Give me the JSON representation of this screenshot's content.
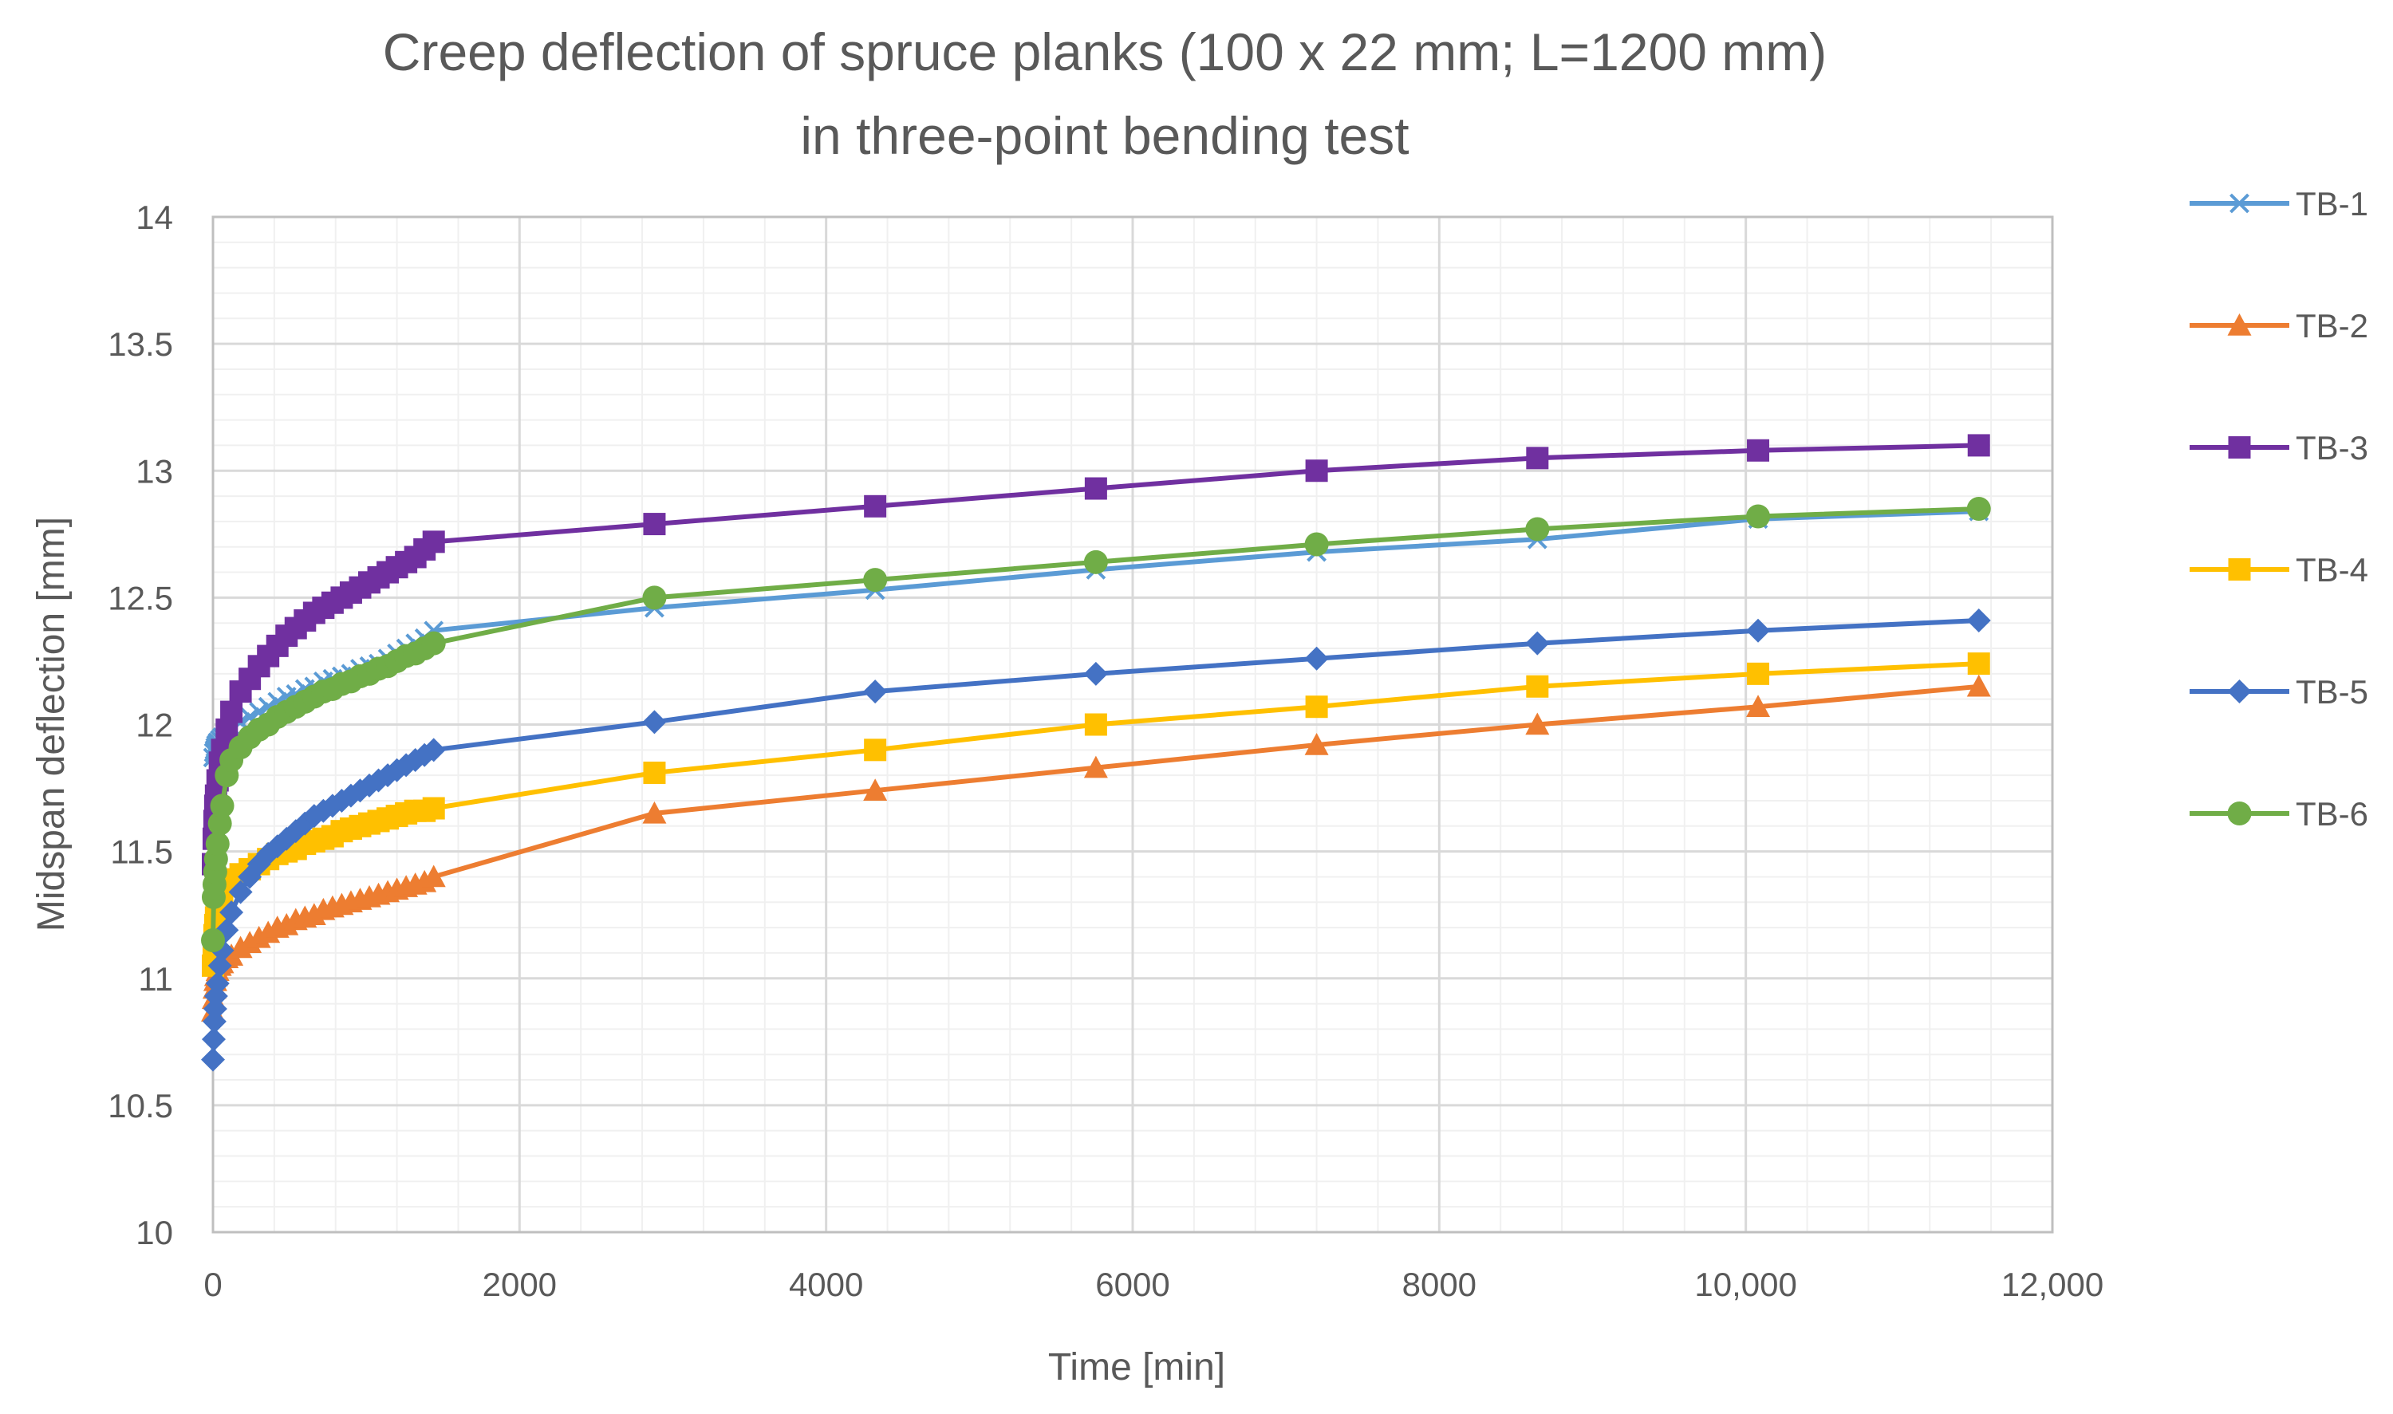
{
  "chart_data": {
    "type": "line",
    "title_lines": [
      "Creep deflection of spruce planks (100 x 22 mm; L=1200 mm)",
      "in three-point bending test"
    ],
    "xlabel": "Time [min]",
    "ylabel": "Midspan deflection [mm]",
    "xlim": [
      0,
      12000
    ],
    "ylim": [
      10,
      14
    ],
    "x_major_ticks": [
      0,
      2000,
      4000,
      6000,
      8000,
      10000,
      12000
    ],
    "x_tick_labels": [
      "0",
      "2000",
      "4000",
      "6000",
      "8000",
      "10,000",
      "12,000"
    ],
    "y_major_ticks": [
      10,
      10.5,
      11,
      11.5,
      12,
      12.5,
      13,
      13.5,
      14
    ],
    "y_tick_labels": [
      "10",
      "10.5",
      "11",
      "11.5",
      "12",
      "12.5",
      "13",
      "13.5",
      "14"
    ],
    "x_minor_step": 400,
    "y_minor_step": 0.1,
    "grid": true,
    "legend_position": "right",
    "series": [
      {
        "name": "TB-1",
        "color": "#5B9BD5",
        "marker": "x",
        "x": [
          0,
          5,
          10,
          15,
          20,
          30,
          45,
          60,
          90,
          120,
          180,
          240,
          300,
          360,
          420,
          480,
          540,
          600,
          660,
          720,
          780,
          840,
          900,
          960,
          1020,
          1080,
          1140,
          1200,
          1260,
          1320,
          1380,
          1440,
          2880,
          4320,
          5760,
          7200,
          8640,
          10080,
          11520
        ],
        "y": [
          11.87,
          11.89,
          11.9,
          11.91,
          11.92,
          11.93,
          11.94,
          11.95,
          11.97,
          11.99,
          12.01,
          12.03,
          12.05,
          12.07,
          12.09,
          12.11,
          12.12,
          12.14,
          12.15,
          12.17,
          12.18,
          12.19,
          12.2,
          12.22,
          12.23,
          12.24,
          12.26,
          12.28,
          12.3,
          12.32,
          12.34,
          12.37,
          12.46,
          12.53,
          12.61,
          12.68,
          12.73,
          12.81,
          12.84
        ]
      },
      {
        "name": "TB-2",
        "color": "#ED7D31",
        "marker": "triangle",
        "x": [
          0,
          5,
          10,
          15,
          20,
          30,
          45,
          60,
          90,
          120,
          180,
          240,
          300,
          360,
          420,
          480,
          540,
          600,
          660,
          720,
          780,
          840,
          900,
          960,
          1020,
          1080,
          1140,
          1200,
          1260,
          1320,
          1380,
          1440,
          2880,
          4320,
          5760,
          7200,
          8640,
          10080,
          11520
        ],
        "y": [
          10.87,
          10.92,
          10.96,
          10.99,
          11.01,
          11.03,
          11.05,
          11.06,
          11.08,
          11.09,
          11.12,
          11.14,
          11.16,
          11.18,
          11.2,
          11.21,
          11.23,
          11.24,
          11.25,
          11.27,
          11.28,
          11.29,
          11.3,
          11.31,
          11.32,
          11.33,
          11.34,
          11.35,
          11.36,
          11.37,
          11.38,
          11.4,
          11.65,
          11.74,
          11.83,
          11.92,
          12.0,
          12.07,
          12.15
        ]
      },
      {
        "name": "TB-3",
        "color": "#7030A0",
        "marker": "square",
        "x": [
          0,
          5,
          10,
          15,
          20,
          30,
          45,
          60,
          90,
          120,
          180,
          240,
          300,
          360,
          420,
          480,
          540,
          600,
          660,
          720,
          780,
          840,
          900,
          960,
          1020,
          1080,
          1140,
          1200,
          1260,
          1320,
          1380,
          1440,
          2880,
          4320,
          5760,
          7200,
          8640,
          10080,
          11520
        ],
        "y": [
          11.45,
          11.55,
          11.62,
          11.68,
          11.72,
          11.78,
          11.85,
          11.9,
          11.98,
          12.05,
          12.13,
          12.18,
          12.23,
          12.27,
          12.31,
          12.35,
          12.38,
          12.41,
          12.44,
          12.46,
          12.48,
          12.5,
          12.52,
          12.54,
          12.56,
          12.58,
          12.6,
          12.62,
          12.64,
          12.66,
          12.69,
          12.72,
          12.79,
          12.86,
          12.93,
          13.0,
          13.05,
          13.08,
          13.1
        ]
      },
      {
        "name": "TB-4",
        "color": "#FFC000",
        "marker": "square",
        "x": [
          0,
          5,
          10,
          15,
          20,
          30,
          45,
          60,
          90,
          120,
          180,
          240,
          300,
          360,
          420,
          480,
          540,
          600,
          660,
          720,
          780,
          840,
          900,
          960,
          1020,
          1080,
          1140,
          1200,
          1260,
          1320,
          1380,
          1440,
          2880,
          4320,
          5760,
          7200,
          8640,
          10080,
          11520
        ],
        "y": [
          11.05,
          11.12,
          11.17,
          11.21,
          11.24,
          11.28,
          11.31,
          11.34,
          11.37,
          11.39,
          11.41,
          11.43,
          11.45,
          11.47,
          11.49,
          11.5,
          11.51,
          11.53,
          11.54,
          11.55,
          11.56,
          11.58,
          11.59,
          11.6,
          11.61,
          11.62,
          11.63,
          11.64,
          11.65,
          11.66,
          11.66,
          11.67,
          11.81,
          11.9,
          12.0,
          12.07,
          12.15,
          12.2,
          12.24
        ]
      },
      {
        "name": "TB-5",
        "color": "#4472C4",
        "marker": "diamond",
        "x": [
          0,
          5,
          10,
          15,
          20,
          30,
          45,
          60,
          90,
          120,
          180,
          240,
          300,
          360,
          420,
          480,
          540,
          600,
          660,
          720,
          780,
          840,
          900,
          960,
          1020,
          1080,
          1140,
          1200,
          1260,
          1320,
          1380,
          1440,
          2880,
          4320,
          5760,
          7200,
          8640,
          10080,
          11520
        ],
        "y": [
          10.68,
          10.76,
          10.83,
          10.88,
          10.93,
          10.98,
          11.05,
          11.11,
          11.19,
          11.26,
          11.34,
          11.4,
          11.45,
          11.49,
          11.52,
          11.55,
          11.58,
          11.61,
          11.64,
          11.66,
          11.68,
          11.7,
          11.72,
          11.74,
          11.76,
          11.78,
          11.8,
          11.82,
          11.84,
          11.86,
          11.88,
          11.9,
          12.01,
          12.13,
          12.2,
          12.26,
          12.32,
          12.37,
          12.41
        ]
      },
      {
        "name": "TB-6",
        "color": "#70AD47",
        "marker": "circle",
        "x": [
          0,
          5,
          10,
          15,
          20,
          30,
          45,
          60,
          90,
          120,
          180,
          240,
          300,
          360,
          420,
          480,
          540,
          600,
          660,
          720,
          780,
          840,
          900,
          960,
          1020,
          1080,
          1140,
          1200,
          1260,
          1320,
          1380,
          1440,
          2880,
          4320,
          5760,
          7200,
          8640,
          10080,
          11520
        ],
        "y": [
          11.15,
          11.32,
          11.37,
          11.42,
          11.47,
          11.53,
          11.61,
          11.68,
          11.8,
          11.86,
          11.91,
          11.95,
          11.98,
          12.0,
          12.03,
          12.05,
          12.07,
          12.09,
          12.11,
          12.13,
          12.14,
          12.16,
          12.17,
          12.19,
          12.2,
          12.22,
          12.23,
          12.25,
          12.27,
          12.28,
          12.3,
          12.32,
          12.5,
          12.57,
          12.64,
          12.71,
          12.77,
          12.82,
          12.85
        ]
      }
    ]
  }
}
